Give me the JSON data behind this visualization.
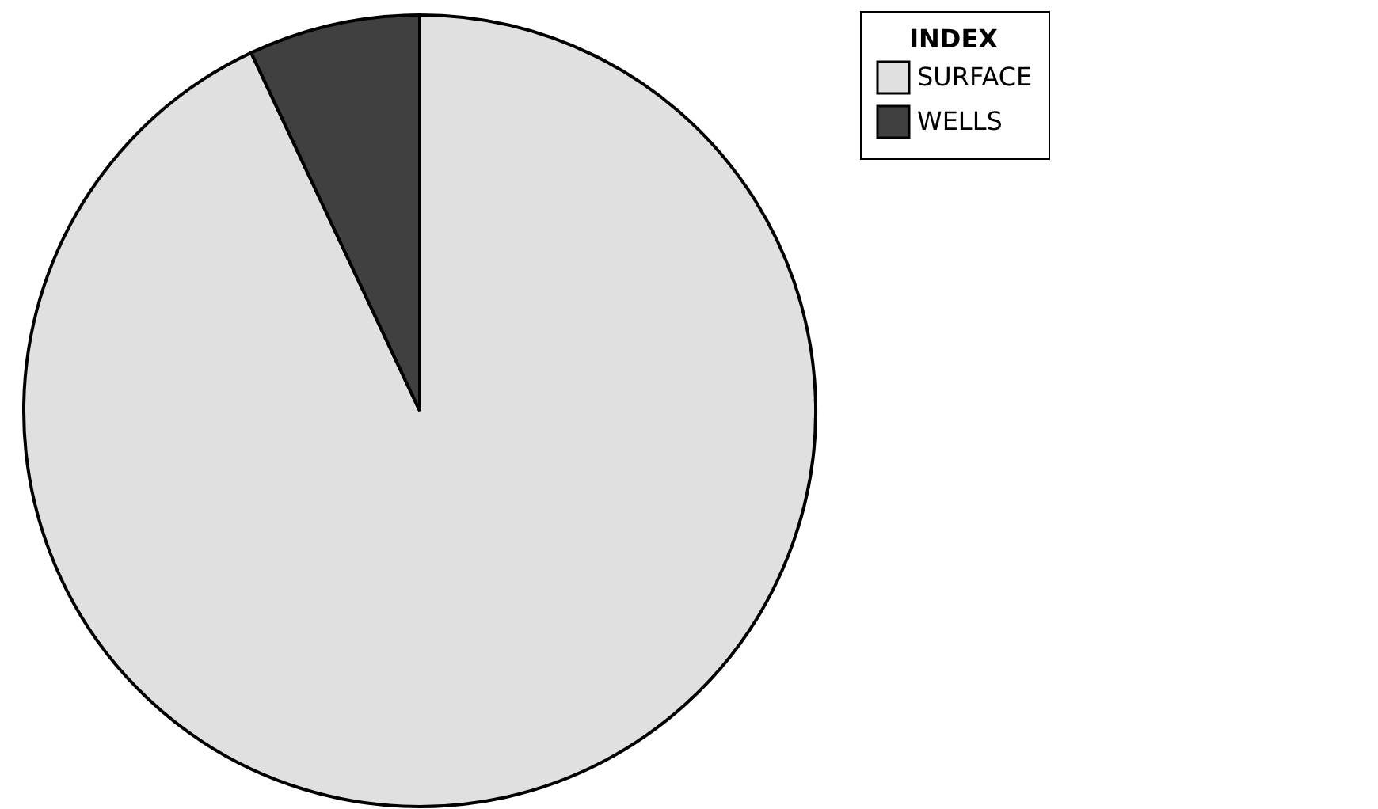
{
  "chart_data": {
    "type": "pie",
    "legend_title": "INDEX",
    "categories": [
      "SURFACE",
      "WELLS"
    ],
    "values": [
      93,
      7
    ],
    "colors": [
      "#e0e0e0",
      "#404040"
    ],
    "legend": "right"
  }
}
